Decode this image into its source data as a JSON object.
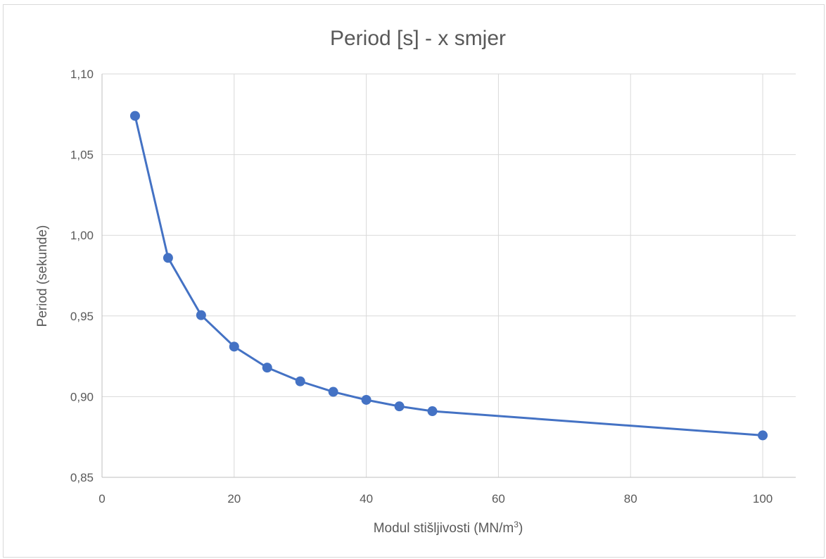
{
  "chart_data": {
    "type": "scatter",
    "title": "Period [s] - x smjer",
    "xlabel": "Modul stišljivosti (MN/m",
    "xlabel_sup": "3",
    "xlabel_end": ")",
    "ylabel": "Period (sekunde)",
    "xlim": [
      0,
      105
    ],
    "ylim": [
      0.85,
      1.1
    ],
    "x_ticks": [
      0,
      20,
      40,
      60,
      80,
      100
    ],
    "x_tick_labels": [
      "0",
      "20",
      "40",
      "60",
      "80",
      "100"
    ],
    "y_ticks": [
      0.85,
      0.9,
      0.95,
      1.0,
      1.05,
      1.1
    ],
    "y_tick_labels": [
      "0,85",
      "0,90",
      "0,95",
      "1,00",
      "1,05",
      "1,10"
    ],
    "grid": true,
    "series": [
      {
        "color": "#4472c4",
        "x": [
          5,
          10,
          15,
          20,
          25,
          30,
          35,
          40,
          45,
          50,
          100
        ],
        "y": [
          1.074,
          0.986,
          0.9505,
          0.931,
          0.918,
          0.9095,
          0.903,
          0.898,
          0.894,
          0.891,
          0.876
        ]
      }
    ]
  }
}
